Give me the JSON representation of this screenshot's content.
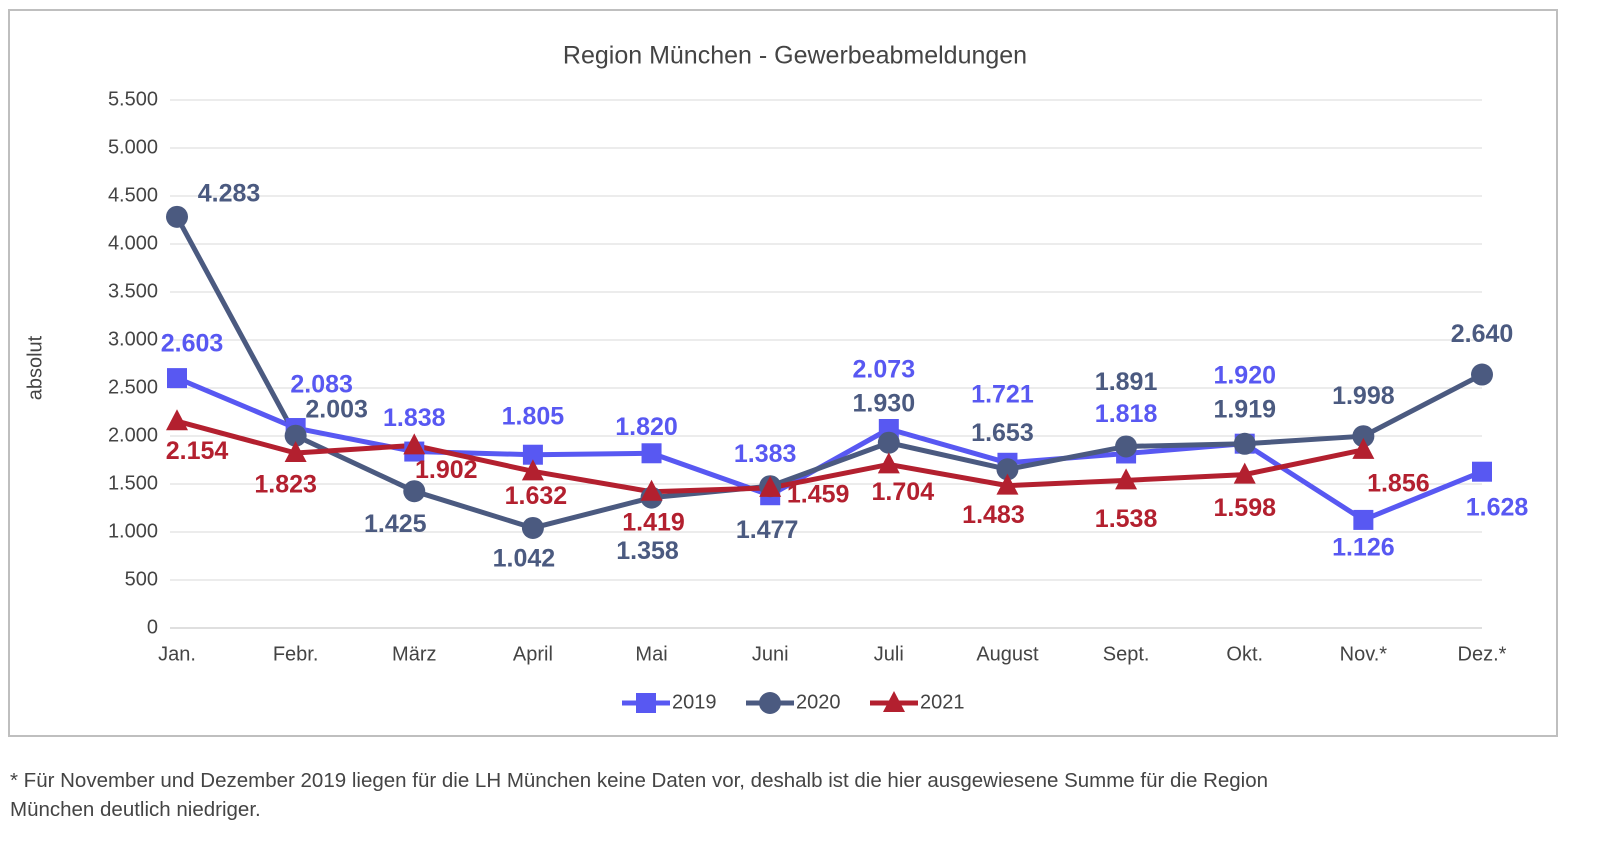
{
  "chart_data": {
    "type": "line",
    "title": "Region München - Gewerbeabmeldungen",
    "y_label": "absolut",
    "categories": [
      "Jan.",
      "Febr.",
      "März",
      "April",
      "Mai",
      "Juni",
      "Juli",
      "August",
      "Sept.",
      "Okt.",
      "Nov.*",
      "Dez.*"
    ],
    "series": [
      {
        "name": "2019",
        "color": "#5858f2",
        "marker": "square",
        "values": [
          2603,
          2083,
          1838,
          1805,
          1820,
          1383,
          2073,
          1721,
          1818,
          1920,
          1126,
          1628
        ],
        "value_labels": [
          "2.603",
          "2.083",
          "1.838",
          "1.805",
          "1.820",
          "1.383",
          "2.073",
          "1.721",
          "1.818",
          "1.920",
          "1.126",
          "1.628"
        ]
      },
      {
        "name": "2020",
        "color": "#4b5a80",
        "marker": "circle",
        "values": [
          4283,
          2003,
          1425,
          1042,
          1358,
          1477,
          1930,
          1653,
          1891,
          1919,
          1998,
          2640
        ],
        "value_labels": [
          "4.283",
          "2.003",
          "1.425",
          "1.042",
          "1.358",
          "1.477",
          "1.930",
          "1.653",
          "1.891",
          "1.919",
          "1.998",
          "2.640"
        ]
      },
      {
        "name": "2021",
        "color": "#b3202f",
        "marker": "triangle",
        "values": [
          2154,
          1823,
          1902,
          1632,
          1419,
          1459,
          1704,
          1483,
          1538,
          1598,
          1856,
          null
        ],
        "value_labels": [
          "2.154",
          "1.823",
          "1.902",
          "1.632",
          "1.419",
          "1.459",
          "1.704",
          "1.483",
          "1.538",
          "1.598",
          "1.856",
          null
        ]
      }
    ],
    "ylim": [
      0,
      5500
    ],
    "yticks": [
      0,
      500,
      {
        "value": 1000,
        "label": "1.000"
      },
      {
        "value": 1500,
        "label": "1.500"
      },
      {
        "value": 2000,
        "label": "2.000"
      },
      {
        "value": 2500,
        "label": "2.500"
      },
      {
        "value": 3000,
        "label": "3.000"
      },
      {
        "value": 3500,
        "label": "3.500"
      },
      {
        "value": 4000,
        "label": "4.000"
      },
      {
        "value": 4500,
        "label": "4.500"
      },
      {
        "value": 5000,
        "label": "5.000"
      },
      {
        "value": 5500,
        "label": "5.500"
      }
    ],
    "grid": true,
    "legend": "bottom",
    "footnote": "* Für November und Dezember 2019 liegen für die LH München keine Daten vor, deshalb ist die hier ausgewiesene Summe für die Region München deutlich niedriger."
  }
}
